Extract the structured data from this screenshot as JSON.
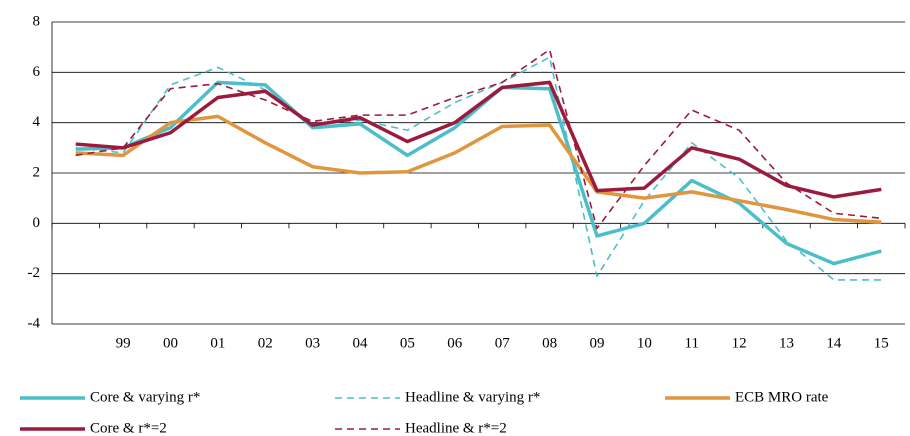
{
  "chart_data": {
    "type": "line",
    "categories": [
      null,
      "99",
      "00",
      "01",
      "02",
      "03",
      "04",
      "05",
      "06",
      "07",
      "08",
      "09",
      "10",
      "11",
      "12",
      "13",
      "14",
      "15"
    ],
    "series": [
      {
        "name": "Core & varying r*",
        "color": "#4bbfc9",
        "dashed": false,
        "values": [
          2.95,
          3.0,
          3.8,
          5.6,
          5.5,
          3.8,
          3.95,
          2.7,
          3.8,
          5.4,
          5.35,
          -0.5,
          0,
          1.7,
          0.8,
          -0.8,
          -1.6,
          -1.1
        ]
      },
      {
        "name": "Headline & varying r*",
        "color": "#4bbfc9",
        "dashed": true,
        "values": [
          3.0,
          2.8,
          5.5,
          6.2,
          5.3,
          3.9,
          4.1,
          3.7,
          4.8,
          5.6,
          6.6,
          -2.1,
          0.9,
          3.2,
          1.8,
          -0.7,
          -2.25,
          -2.25
        ]
      },
      {
        "name": "ECB MRO rate",
        "color": "#e0963f",
        "dashed": false,
        "values": [
          2.8,
          2.7,
          4.0,
          4.25,
          3.2,
          2.25,
          2.0,
          2.05,
          2.8,
          3.85,
          3.9,
          1.25,
          1.0,
          1.25,
          0.9,
          0.55,
          0.15,
          0.05
        ]
      },
      {
        "name": "Core &  r*=2",
        "color": "#9b1b3f",
        "dashed": false,
        "values": [
          3.15,
          3.0,
          3.6,
          5.0,
          5.25,
          3.9,
          4.2,
          3.25,
          4.0,
          5.4,
          5.6,
          1.3,
          1.4,
          3.0,
          2.55,
          1.5,
          1.05,
          1.35
        ]
      },
      {
        "name": "Headline & r*=2",
        "color": "#9b1b3f",
        "dashed": true,
        "values": [
          2.7,
          3.0,
          5.35,
          5.55,
          4.9,
          4.05,
          4.3,
          4.3,
          5.0,
          5.6,
          6.9,
          -0.2,
          2.3,
          4.5,
          3.7,
          1.6,
          0.4,
          0.2
        ]
      }
    ],
    "ylim": [
      -4,
      8
    ],
    "yticks": [
      -4,
      -2,
      0,
      2,
      4,
      6,
      8
    ],
    "grid": true
  }
}
